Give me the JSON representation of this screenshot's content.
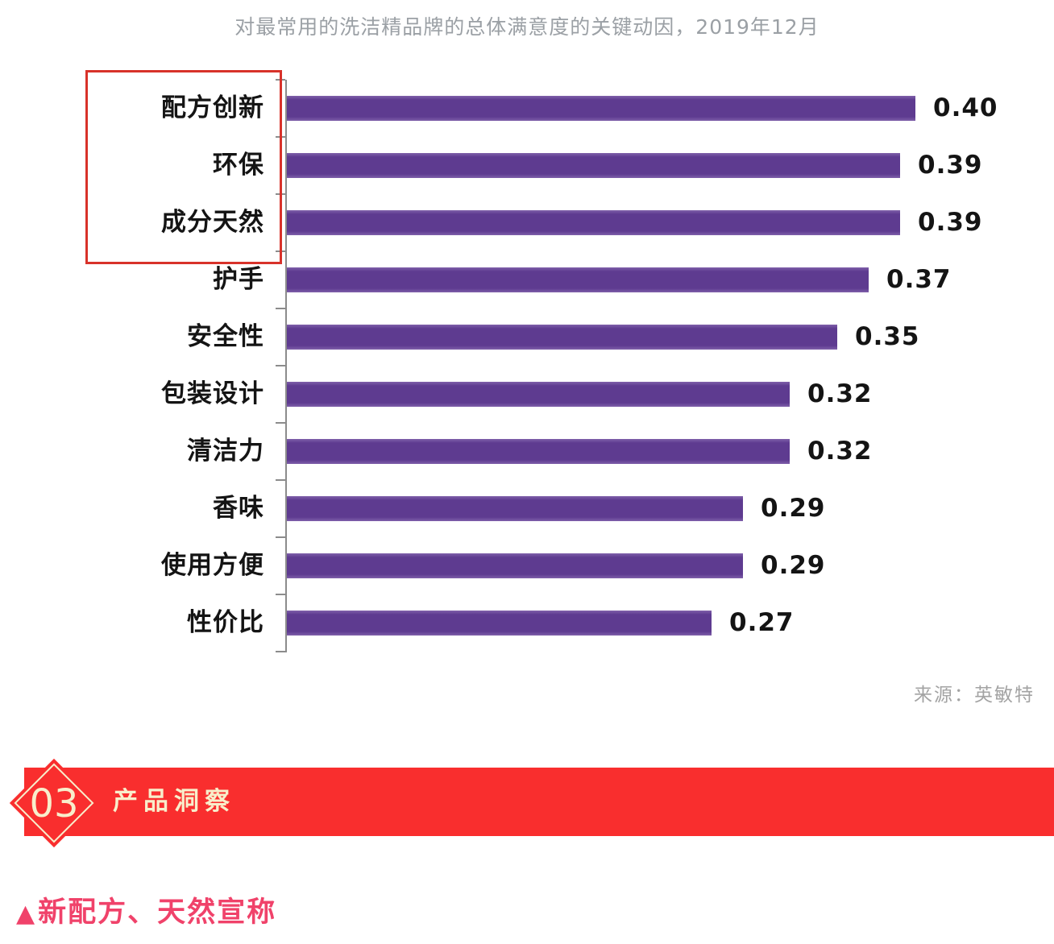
{
  "chart_data": {
    "type": "bar",
    "orientation": "horizontal",
    "title": "对最常用的洗洁精品牌的总体满意度的关键动因，2019年12月",
    "categories": [
      "配方创新",
      "环保",
      "成分天然",
      "护手",
      "安全性",
      "包装设计",
      "清洁力",
      "香味",
      "使用方便",
      "性价比"
    ],
    "values": [
      0.4,
      0.39,
      0.39,
      0.37,
      0.35,
      0.32,
      0.32,
      0.29,
      0.29,
      0.27
    ],
    "value_labels": [
      "0.40",
      "0.39",
      "0.39",
      "0.37",
      "0.35",
      "0.32",
      "0.32",
      "0.29",
      "0.29",
      "0.27"
    ],
    "xlim": [
      0,
      0.45
    ],
    "grid": false,
    "legend": "none",
    "highlighted_categories": [
      "配方创新",
      "环保",
      "成分天然"
    ],
    "source": "来源：英敏特",
    "bar_color": "#5e3b90",
    "highlight_box_color": "#d8322a"
  },
  "section_banner": {
    "number": "03",
    "label": "产品洞察",
    "background_color": "#f92e2e",
    "text_color": "#f8eecb"
  },
  "annotation": {
    "marker": "▲",
    "text": "新配方、天然宣称",
    "color": "#f0426a"
  }
}
